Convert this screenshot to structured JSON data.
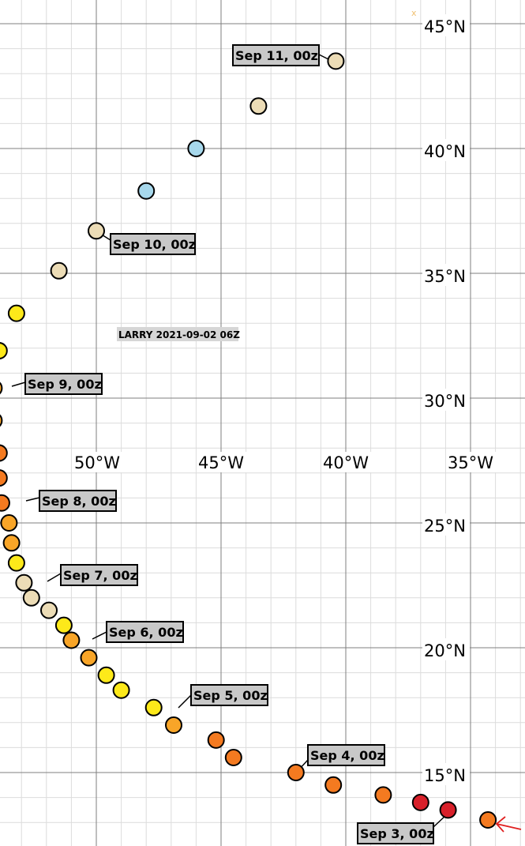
{
  "storm": {
    "title": "LARRY 2021-09-02 06Z"
  },
  "axes": {
    "lat_labels": [
      "45°N",
      "40°N",
      "35°N",
      "30°N",
      "25°N",
      "20°N",
      "15°N"
    ],
    "lon_labels": [
      "50°W",
      "45°W",
      "40°W",
      "35°W"
    ],
    "corner_mark": "x"
  },
  "date_labels": [
    "Sep 11, 00z",
    "Sep 10, 00z",
    "Sep 9, 00z",
    "Sep 8, 00z",
    "Sep 7, 00z",
    "Sep 6, 00z",
    "Sep 5, 00z",
    "Sep 4, 00z",
    "Sep 3, 00z"
  ],
  "colors": {
    "grid_minor": "#dcdcdc",
    "grid_major": "#7f7f7f",
    "label_bg": "#c8c8c8",
    "arrow": "#e02020",
    "dark_red": "#d8202a",
    "orange": "#f47a20",
    "light_orange": "#f8a528",
    "yellow": "#fde91a",
    "beige": "#ecdcb6",
    "light_blue": "#a7d8ec"
  },
  "track": [
    {
      "lon": -34.3,
      "lat": 13.1,
      "color": "orange"
    },
    {
      "lon": -35.9,
      "lat": 13.5,
      "color": "dark_red"
    },
    {
      "lon": -37.0,
      "lat": 13.8,
      "color": "dark_red"
    },
    {
      "lon": -38.5,
      "lat": 14.1,
      "color": "orange"
    },
    {
      "lon": -40.5,
      "lat": 14.5,
      "color": "orange"
    },
    {
      "lon": -42.0,
      "lat": 15.0,
      "color": "orange"
    },
    {
      "lon": -44.5,
      "lat": 15.6,
      "color": "orange"
    },
    {
      "lon": -45.2,
      "lat": 16.3,
      "color": "orange"
    },
    {
      "lon": -46.9,
      "lat": 16.9,
      "color": "light_orange"
    },
    {
      "lon": -47.7,
      "lat": 17.6,
      "color": "yellow"
    },
    {
      "lon": -49.0,
      "lat": 18.3,
      "color": "yellow"
    },
    {
      "lon": -49.6,
      "lat": 18.9,
      "color": "yellow"
    },
    {
      "lon": -50.3,
      "lat": 19.6,
      "color": "light_orange"
    },
    {
      "lon": -51.0,
      "lat": 20.3,
      "color": "light_orange"
    },
    {
      "lon": -51.3,
      "lat": 20.9,
      "color": "yellow"
    },
    {
      "lon": -51.9,
      "lat": 21.5,
      "color": "beige"
    },
    {
      "lon": -52.6,
      "lat": 22.0,
      "color": "beige"
    },
    {
      "lon": -52.9,
      "lat": 22.6,
      "color": "beige"
    },
    {
      "lon": -53.2,
      "lat": 23.4,
      "color": "yellow"
    },
    {
      "lon": -53.4,
      "lat": 24.2,
      "color": "light_orange"
    },
    {
      "lon": -53.5,
      "lat": 25.0,
      "color": "light_orange"
    },
    {
      "lon": -53.8,
      "lat": 25.8,
      "color": "orange"
    },
    {
      "lon": -53.9,
      "lat": 26.8,
      "color": "orange"
    },
    {
      "lon": -53.9,
      "lat": 27.8,
      "color": "orange"
    },
    {
      "lon": -54.1,
      "lat": 29.1,
      "color": "light_orange"
    },
    {
      "lon": -54.1,
      "lat": 30.4,
      "color": "light_orange"
    },
    {
      "lon": -53.9,
      "lat": 31.9,
      "color": "yellow"
    },
    {
      "lon": -53.2,
      "lat": 33.4,
      "color": "yellow"
    },
    {
      "lon": -51.5,
      "lat": 35.1,
      "color": "beige"
    },
    {
      "lon": -50.0,
      "lat": 36.7,
      "color": "beige"
    },
    {
      "lon": -48.0,
      "lat": 38.3,
      "color": "light_blue"
    },
    {
      "lon": -46.0,
      "lat": 40.0,
      "color": "light_blue"
    },
    {
      "lon": -43.5,
      "lat": 41.7,
      "color": "beige"
    },
    {
      "lon": -40.4,
      "lat": 43.5,
      "color": "beige"
    }
  ]
}
